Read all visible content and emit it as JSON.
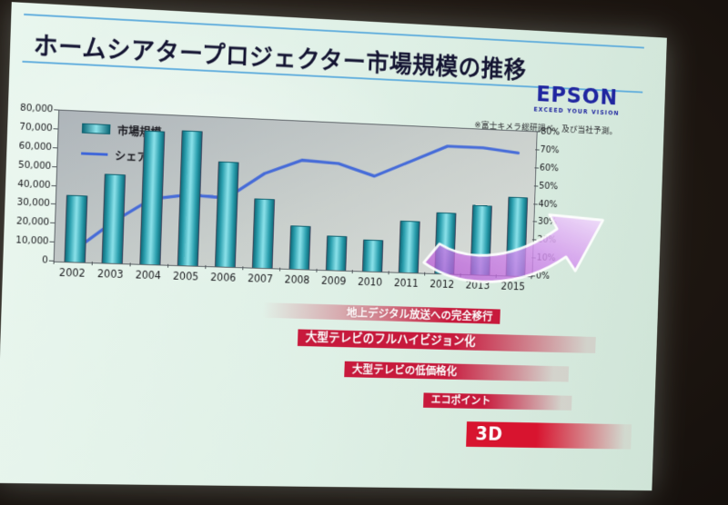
{
  "photo": {
    "scene": "photograph of projected presentation slide",
    "background_color": "#1c1510"
  },
  "slide": {
    "title": "ホームシアタープロジェクター市場規模の推移",
    "logo": {
      "name": "EPSON",
      "tagline": "EXCEED YOUR VISION",
      "color": "#2026a0"
    },
    "source_note": "※富士キメラ総研調べ、及び当社予測。",
    "banners": [
      {
        "label": "地上デジタル放送への完全移行"
      },
      {
        "label": "大型テレビのフルハイビジョン化"
      },
      {
        "label": "大型テレビの低価格化"
      },
      {
        "label": "エコポイント"
      },
      {
        "label": "3D"
      }
    ],
    "banner_color": "#c8193c",
    "arrow_color": "#c873e6",
    "accent_line_color": "#58a8dc"
  },
  "chart_data": {
    "type": "bar",
    "subtype": "bar+line combo",
    "title": "ホームシアタープロジェクター市場規模の推移",
    "categories": [
      "2002",
      "2003",
      "2004",
      "2005",
      "2006",
      "2007",
      "2008",
      "2009",
      "2010",
      "2011",
      "2012",
      "2013",
      "2015"
    ],
    "series": [
      {
        "name": "市場規模",
        "type": "bar",
        "axis": "left",
        "color": "#2f9fae",
        "values": [
          35000,
          47000,
          71000,
          72000,
          56000,
          37000,
          23000,
          18000,
          17000,
          28000,
          33000,
          38000,
          43000
        ]
      },
      {
        "name": "シェア",
        "type": "line",
        "axis": "right",
        "color": "#3f66d9",
        "unit": "%",
        "values": [
          6,
          22,
          35,
          38,
          37,
          51,
          59,
          58,
          52,
          61,
          70,
          70,
          68
        ]
      }
    ],
    "left_axis": {
      "min": 0,
      "max": 80000,
      "step": 10000,
      "tick_labels": [
        "80,000",
        "70,000",
        "60,000",
        "50,000",
        "40,000",
        "30,000",
        "20,000",
        "10,000",
        "0"
      ]
    },
    "right_axis": {
      "min": 0,
      "max": 80,
      "step": 10,
      "tick_labels": [
        "80%",
        "70%",
        "60%",
        "50%",
        "40%",
        "30%",
        "20%",
        "10%",
        "0%"
      ]
    },
    "legend_position": "top-left",
    "gridlines": false
  }
}
